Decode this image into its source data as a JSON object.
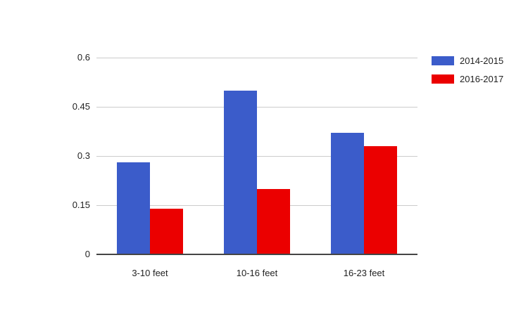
{
  "chart_data": {
    "type": "bar",
    "title": "",
    "categories": [
      "3-10 feet",
      "10-16 feet",
      "16-23 feet"
    ],
    "series": [
      {
        "name": "2014-2015",
        "color": "#3B5CCA",
        "values": [
          0.28,
          0.5,
          0.37
        ]
      },
      {
        "name": "2016-2017",
        "color": "#EB0000",
        "values": [
          0.14,
          0.2,
          0.33
        ]
      }
    ],
    "xlabel": "",
    "ylabel": "",
    "ylim": [
      0,
      0.6
    ],
    "yticks": [
      0,
      0.15,
      0.3,
      0.45,
      0.6
    ],
    "ytick_labels": [
      "0",
      "0.15",
      "0.3",
      "0.45",
      "0.6"
    ],
    "grid": true,
    "legend_position": "top-right"
  },
  "colors": {
    "background": "#FFFFFF",
    "gridline": "#CCCCCC",
    "axis_line": "#454545",
    "text": "#222222"
  }
}
